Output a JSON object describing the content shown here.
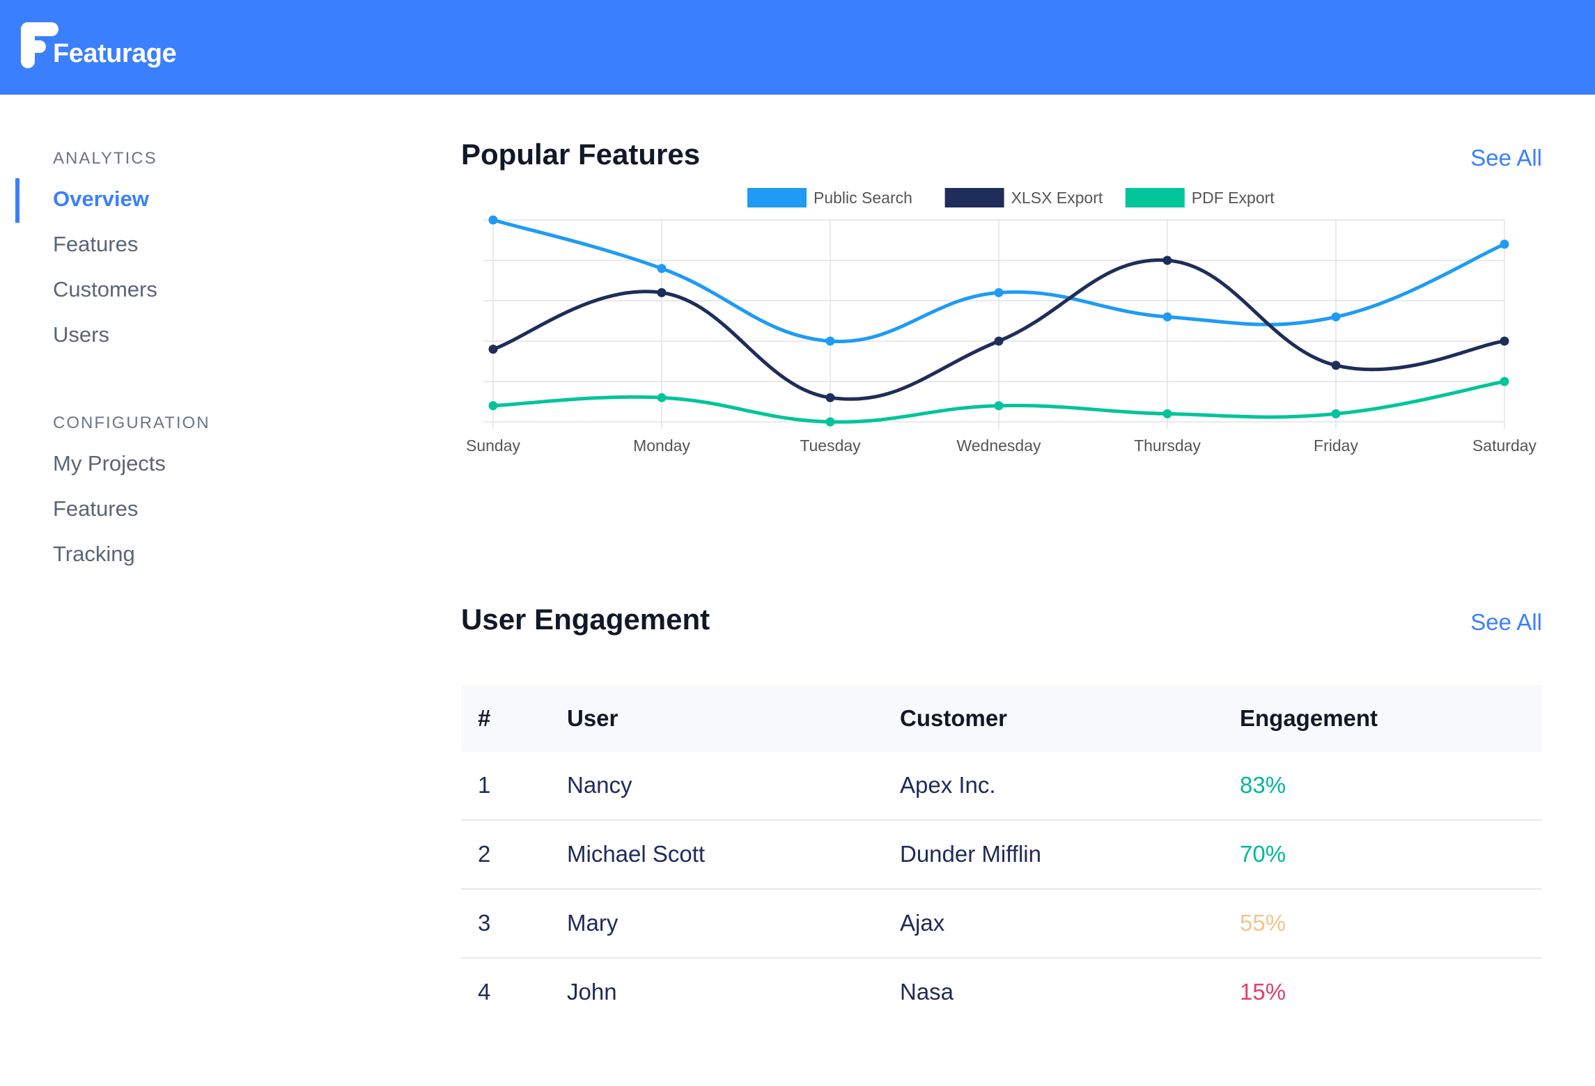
{
  "app": {
    "name": "Featurage",
    "brand_color": "#3a7ffe"
  },
  "sidebar": {
    "sections": [
      {
        "heading": "ANALYTICS",
        "items": [
          {
            "label": "Overview",
            "active": true
          },
          {
            "label": "Features"
          },
          {
            "label": "Customers"
          },
          {
            "label": "Users"
          }
        ]
      },
      {
        "heading": "CONFIGURATION",
        "items": [
          {
            "label": "My Projects"
          },
          {
            "label": "Features"
          },
          {
            "label": "Tracking"
          }
        ]
      }
    ]
  },
  "popular": {
    "title": "Popular Features",
    "see_all": "See All"
  },
  "chart_data": {
    "type": "line",
    "categories": [
      "Sunday",
      "Monday",
      "Tuesday",
      "Wednesday",
      "Thursday",
      "Friday",
      "Saturday"
    ],
    "series": [
      {
        "name": "Public Search",
        "color": "#1e9bf5",
        "values": [
          100,
          88,
          70,
          82,
          76,
          76,
          94
        ]
      },
      {
        "name": "XLSX Export",
        "color": "#1e2d59",
        "values": [
          68,
          82,
          56,
          70,
          90,
          64,
          70
        ]
      },
      {
        "name": "PDF Export",
        "color": "#00c49a",
        "values": [
          54,
          56,
          50,
          54,
          52,
          52,
          60
        ]
      }
    ],
    "ylim": [
      50,
      100
    ],
    "grid": true,
    "legend": "top-center",
    "curve": "smooth"
  },
  "engagement": {
    "title": "User Engagement",
    "see_all": "See All",
    "columns": [
      "#",
      "User",
      "Customer",
      "Engagement"
    ],
    "rows": [
      {
        "n": "1",
        "user": "Nancy",
        "customer": "Apex Inc.",
        "engagement": "83%",
        "color": "#00b894"
      },
      {
        "n": "2",
        "user": "Michael Scott",
        "customer": "Dunder Mifflin",
        "engagement": "70%",
        "color": "#00b894"
      },
      {
        "n": "3",
        "user": "Mary",
        "customer": "Ajax",
        "engagement": "55%",
        "color": "#f3c58d"
      },
      {
        "n": "4",
        "user": "John",
        "customer": "Nasa",
        "engagement": "15%",
        "color": "#e0406c"
      }
    ]
  }
}
